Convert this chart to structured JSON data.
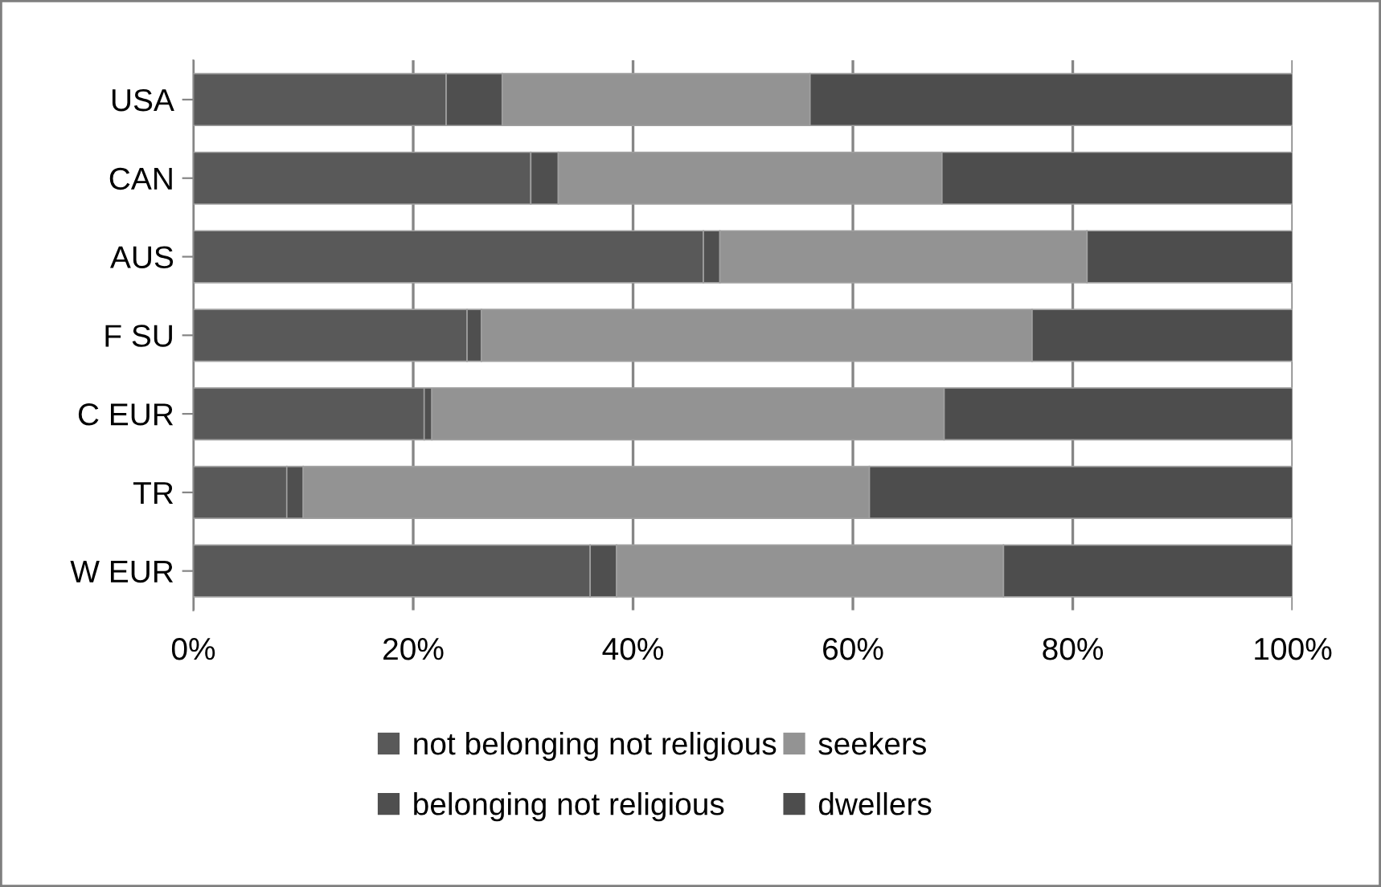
{
  "chart_data": {
    "type": "bar",
    "orientation": "horizontal",
    "stacked": true,
    "categories": [
      "USA",
      "CAN",
      "AUS",
      "F SU",
      "C EUR",
      "TR",
      "W EUR"
    ],
    "series": [
      {
        "name": "not belonging not religious",
        "color": "#595959",
        "values": [
          23.0,
          30.7,
          46.4,
          24.9,
          21.0,
          8.5,
          36.1
        ]
      },
      {
        "name": "belonging not religious",
        "color": "#4f4f4f",
        "values": [
          5.1,
          2.5,
          1.5,
          1.3,
          0.7,
          1.5,
          2.4
        ]
      },
      {
        "name": "seekers",
        "color": "#939393",
        "values": [
          28.0,
          34.9,
          33.4,
          50.1,
          46.6,
          51.5,
          35.2
        ]
      },
      {
        "name": "dwellers",
        "color": "#4d4d4d",
        "values": [
          43.9,
          31.9,
          18.7,
          23.7,
          31.7,
          38.5,
          26.3
        ]
      }
    ],
    "xlim": [
      0,
      100
    ],
    "xticks": [
      {
        "value": 0,
        "label": "0%"
      },
      {
        "value": 20,
        "label": "20%"
      },
      {
        "value": 40,
        "label": "40%"
      },
      {
        "value": 60,
        "label": "60%"
      },
      {
        "value": 80,
        "label": "80%"
      },
      {
        "value": 100,
        "label": "100%"
      }
    ],
    "grid": "x",
    "legend": "bottom"
  }
}
